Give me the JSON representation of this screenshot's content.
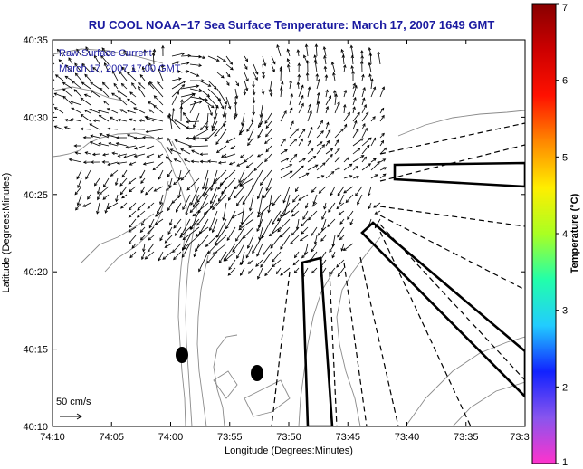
{
  "title": "RU COOL  NOAA−17  Sea Surface Temperature:  March 17, 2007 1649 GMT",
  "legend": {
    "line1": "Raw Surface Current",
    "line2": "March 17, 2007 17:00 GMT"
  },
  "scale_label": "50 cm/s",
  "x_axis": {
    "label": "Longitude (Degrees:Minutes)",
    "ticks": [
      "74:10",
      "74:05",
      "74:00",
      "73:55",
      "73:50",
      "73:45",
      "73:40",
      "73:35",
      "73:3"
    ]
  },
  "y_axis": {
    "label": "Latitude (Degrees:Minutes)",
    "ticks": [
      "40:10",
      "40:15",
      "40:20",
      "40:25",
      "40:30",
      "40:35"
    ]
  },
  "colorbar": {
    "label": "Temperature (°C)",
    "ticks": [
      "1",
      "2",
      "3",
      "4",
      "5",
      "6",
      "7"
    ],
    "colors": [
      "#ff33cc",
      "#8855ee",
      "#1122ff",
      "#22ccff",
      "#22ffaa",
      "#aaff22",
      "#ffee00",
      "#ff8800",
      "#ff1100",
      "#cc0000",
      "#880000"
    ]
  },
  "colors": {
    "title": "#1a1aa0",
    "land": "#ffffff",
    "vector": "#000000",
    "contour": "#8a8a8a"
  }
}
